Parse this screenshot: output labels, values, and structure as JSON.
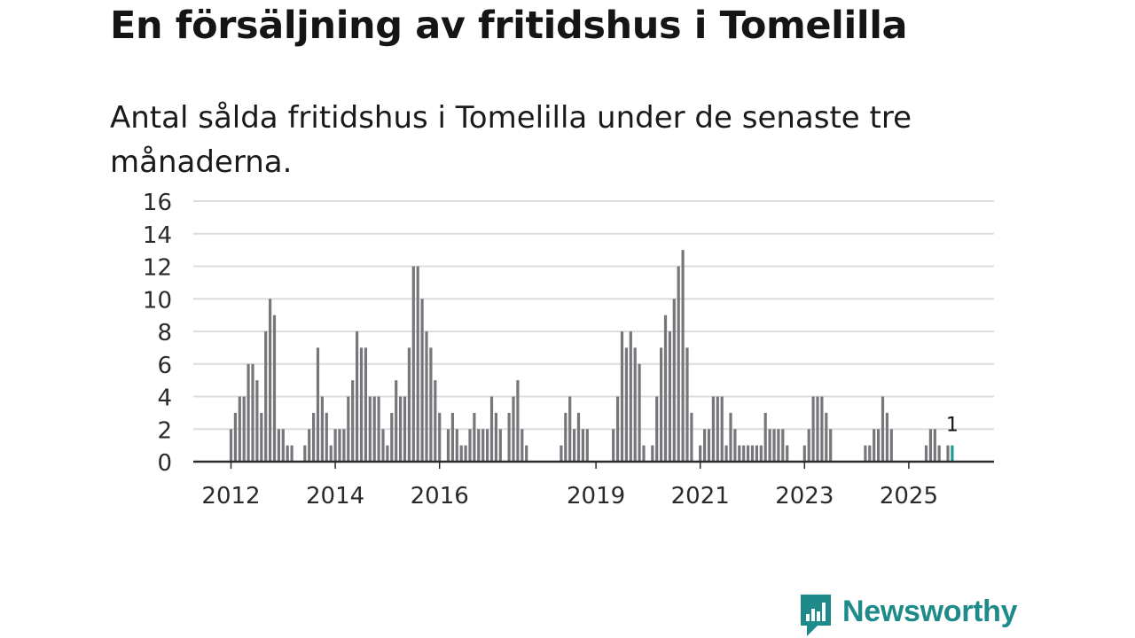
{
  "header": {
    "title": "En försäljning av fritidshus i Tomelilla",
    "subtitle": "Antal sålda fritidshus i Tomelilla under de senaste tre månaderna."
  },
  "brand": {
    "name": "Newsworthy",
    "icon": "newsworthy-logo-icon",
    "color": "#1e8a8a"
  },
  "chart_data": {
    "type": "bar",
    "title": "En försäljning av fritidshus i Tomelilla",
    "subtitle": "Antal sålda fritidshus i Tomelilla under de senaste tre månaderna.",
    "xlabel": "",
    "ylabel": "",
    "ylim": [
      0,
      16
    ],
    "yticks": [
      0,
      2,
      4,
      6,
      8,
      10,
      12,
      14,
      16
    ],
    "grid": true,
    "x_start": "2012-01",
    "frequency": "monthly",
    "xticks": [
      {
        "label": "2012",
        "index": 0
      },
      {
        "label": "2014",
        "index": 24
      },
      {
        "label": "2016",
        "index": 48
      },
      {
        "label": "2019",
        "index": 84
      },
      {
        "label": "2021",
        "index": 108
      },
      {
        "label": "2023",
        "index": 132
      },
      {
        "label": "2025",
        "index": 156
      }
    ],
    "bar_color": "#77767b",
    "highlight_color": "#1e9a94",
    "highlight_index": 166,
    "highlight_label": "1",
    "values": [
      2,
      3,
      4,
      4,
      6,
      6,
      5,
      3,
      8,
      10,
      9,
      2,
      2,
      1,
      1,
      0,
      0,
      1,
      2,
      3,
      7,
      4,
      3,
      1,
      2,
      2,
      2,
      4,
      5,
      8,
      7,
      7,
      4,
      4,
      4,
      2,
      1,
      3,
      5,
      4,
      4,
      7,
      12,
      12,
      10,
      8,
      7,
      5,
      3,
      0,
      2,
      3,
      2,
      1,
      1,
      2,
      3,
      2,
      2,
      2,
      4,
      3,
      2,
      0,
      3,
      4,
      5,
      2,
      1,
      0,
      0,
      0,
      0,
      0,
      0,
      0,
      1,
      3,
      4,
      2,
      3,
      2,
      2,
      0,
      0,
      0,
      0,
      0,
      2,
      4,
      8,
      7,
      8,
      7,
      6,
      1,
      0,
      1,
      4,
      7,
      9,
      8,
      10,
      12,
      13,
      7,
      3,
      0,
      1,
      2,
      2,
      4,
      4,
      4,
      1,
      3,
      2,
      1,
      1,
      1,
      1,
      1,
      1,
      3,
      2,
      2,
      2,
      2,
      1,
      0,
      0,
      0,
      1,
      2,
      4,
      4,
      4,
      3,
      2,
      0,
      0,
      0,
      0,
      0,
      0,
      0,
      1,
      1,
      2,
      2,
      4,
      3,
      2,
      0,
      0,
      0,
      0,
      0,
      0,
      0,
      1,
      2,
      2,
      1,
      0,
      1,
      1
    ]
  }
}
